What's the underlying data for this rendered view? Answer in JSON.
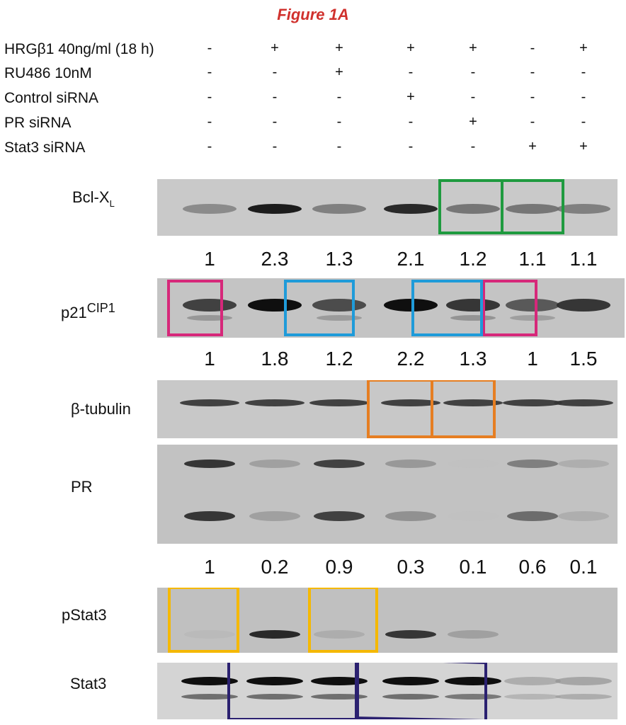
{
  "figure_title": "Figure 1A",
  "conditions": [
    {
      "label": "HRGβ1 40ng/ml (18 h)",
      "marks": [
        "-",
        "+",
        "+",
        "+",
        "+",
        "-",
        "+"
      ]
    },
    {
      "label": "RU486 10nM",
      "marks": [
        "-",
        "-",
        "+",
        "-",
        "-",
        "-",
        "-"
      ]
    },
    {
      "label": "Control siRNA",
      "marks": [
        "-",
        "-",
        "-",
        "+",
        "-",
        "-",
        "-"
      ]
    },
    {
      "label": "PR siRNA",
      "marks": [
        "-",
        "-",
        "-",
        "-",
        "+",
        "-",
        "-"
      ]
    },
    {
      "label": "Stat3 siRNA",
      "marks": [
        "-",
        "-",
        "-",
        "-",
        "-",
        "+",
        "+"
      ]
    }
  ],
  "blots": {
    "bclxl": {
      "label_main": "Bcl-X",
      "label_sub": "L"
    },
    "p21": {
      "label_main": "p21",
      "label_sup": "CIP1"
    },
    "tubulin": {
      "label": "β-tubulin"
    },
    "pr": {
      "label": "PR"
    },
    "pstat3": {
      "label": "pStat3"
    },
    "stat3": {
      "label": "Stat3"
    }
  },
  "quantification": {
    "bclxl": [
      "1",
      "2.3",
      "1.3",
      "2.1",
      "1.2",
      "1.1",
      "1.1"
    ],
    "p21": [
      "1",
      "1.8",
      "1.2",
      "2.2",
      "1.3",
      "1",
      "1.5"
    ],
    "pr": [
      "1",
      "0.2",
      "0.9",
      "0.3",
      "0.1",
      "0.6",
      "0.1"
    ]
  },
  "band_intensity": {
    "bclxl": [
      0.45,
      0.95,
      0.5,
      0.9,
      0.55,
      0.55,
      0.5
    ],
    "p21": [
      0.8,
      1.0,
      0.75,
      1.0,
      0.85,
      0.7,
      0.85
    ],
    "tubulin": [
      0.8,
      0.8,
      0.8,
      0.8,
      0.8,
      0.8,
      0.8
    ],
    "pr_upper": [
      0.85,
      0.3,
      0.8,
      0.35,
      0.05,
      0.5,
      0.2
    ],
    "pr_lower": [
      0.85,
      0.3,
      0.8,
      0.4,
      0.05,
      0.6,
      0.2
    ],
    "pstat3": [
      0.1,
      0.9,
      0.2,
      0.85,
      0.3,
      0.0,
      0.0
    ],
    "stat3_upper": [
      1.0,
      1.0,
      1.0,
      1.0,
      1.0,
      0.25,
      0.3
    ],
    "stat3_lower": [
      0.6,
      0.6,
      0.6,
      0.6,
      0.55,
      0.2,
      0.25
    ]
  },
  "colors": {
    "title": "#d0312d",
    "green_box": "#1f9a3f",
    "magenta_box": "#d6287a",
    "cyan_box": "#1f9bd9",
    "orange_box": "#e67e22",
    "yellow_box": "#f5b800",
    "navy_box": "#2b2170"
  }
}
